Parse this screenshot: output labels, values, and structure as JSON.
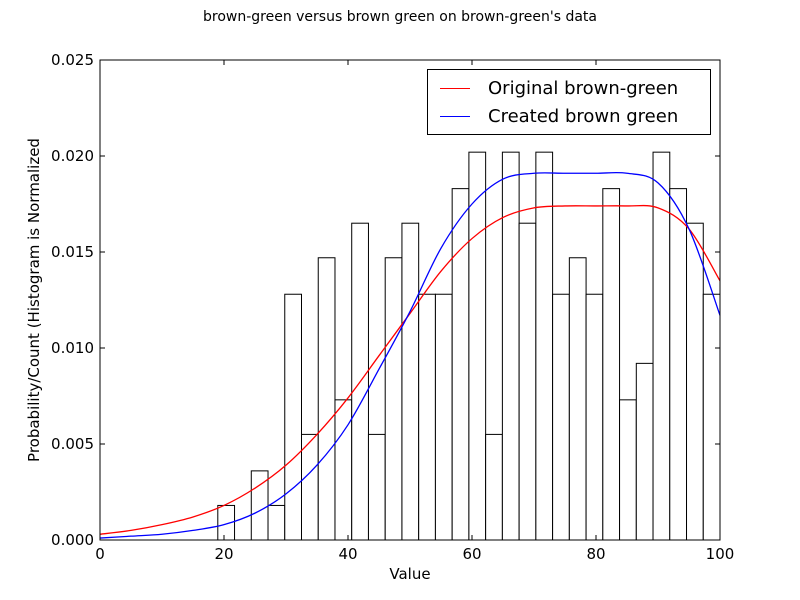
{
  "chart_data": {
    "type": "histogram with overlaid line plots",
    "title": "brown-green versus brown green on brown-green's data",
    "xlabel": "Value",
    "ylabel": "Probability/Count (Histogram is Normalized",
    "xlim": [
      0,
      100
    ],
    "ylim": [
      0,
      0.025
    ],
    "xticks": [
      "0",
      "20",
      "40",
      "60",
      "80",
      "100"
    ],
    "yticks": [
      "0.000",
      "0.005",
      "0.010",
      "0.015",
      "0.020",
      "0.025"
    ],
    "legend_position": "top-right",
    "grid": false,
    "histogram": {
      "bin_width": 2.7,
      "bin_starts": [
        19.0,
        24.4,
        27.1,
        29.8,
        32.5,
        35.2,
        37.9,
        40.6,
        43.3,
        46.0,
        48.7,
        51.4,
        54.1,
        56.8,
        59.5,
        62.2,
        64.9,
        67.6,
        70.3,
        73.0,
        75.7,
        78.4,
        81.1,
        83.8,
        86.5,
        89.2,
        91.9,
        94.6,
        97.3
      ],
      "heights": [
        0.0018,
        0.0036,
        0.0018,
        0.0128,
        0.0055,
        0.0147,
        0.0073,
        0.0165,
        0.0055,
        0.0147,
        0.0165,
        0.0128,
        0.0128,
        0.0183,
        0.0202,
        0.0055,
        0.0202,
        0.0165,
        0.0202,
        0.0128,
        0.0147,
        0.0128,
        0.0183,
        0.0073,
        0.0092,
        0.0202,
        0.0183,
        0.0165,
        0.0128
      ]
    },
    "series": [
      {
        "name": "Original brown-green",
        "color": "#ff0000",
        "x": [
          0,
          5,
          10,
          15,
          20,
          25,
          30,
          35,
          40,
          45,
          50,
          55,
          60,
          65,
          70,
          75,
          80,
          85,
          90,
          95,
          100
        ],
        "y": [
          0.0003,
          0.0005,
          0.0008,
          0.0012,
          0.0018,
          0.0027,
          0.0039,
          0.0055,
          0.0074,
          0.0096,
          0.0118,
          0.014,
          0.0157,
          0.0168,
          0.0173,
          0.0174,
          0.0174,
          0.0174,
          0.0173,
          0.0162,
          0.0135
        ]
      },
      {
        "name": "Created brown green",
        "color": "#0000ff",
        "x": [
          0,
          5,
          10,
          15,
          20,
          25,
          30,
          35,
          40,
          45,
          50,
          55,
          60,
          65,
          70,
          75,
          80,
          85,
          90,
          95,
          100
        ],
        "y": [
          0.0001,
          0.0002,
          0.0003,
          0.0005,
          0.0008,
          0.0014,
          0.0024,
          0.0039,
          0.006,
          0.0089,
          0.0119,
          0.0152,
          0.0175,
          0.0188,
          0.0191,
          0.0191,
          0.0191,
          0.0191,
          0.0186,
          0.0162,
          0.0117
        ]
      }
    ]
  }
}
